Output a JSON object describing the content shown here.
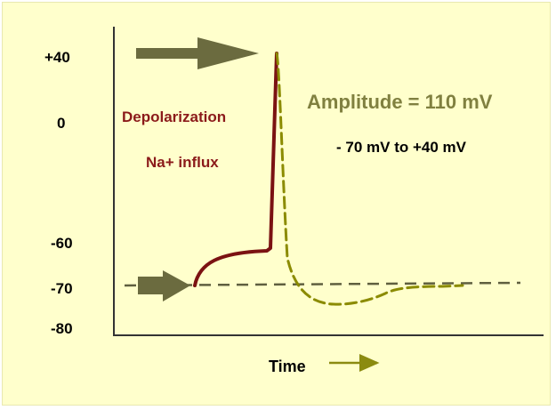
{
  "y_axis": {
    "ticks": [
      {
        "label": "+40",
        "value": 40
      },
      {
        "label": "0",
        "value": 0
      },
      {
        "label": "-60",
        "value": -60
      },
      {
        "label": "-70",
        "value": -70
      },
      {
        "label": "-80",
        "value": -80
      }
    ]
  },
  "x_axis": {
    "label": "Time"
  },
  "annotations": {
    "depolarization": "Depolarization",
    "na_influx": "Na+ influx",
    "amplitude": "Amplitude = 110 mV",
    "range": "- 70 mV to +40 mV"
  },
  "colors": {
    "background": "#ffffcc",
    "axis": "#333333",
    "depolarization_curve": "#7b1212",
    "repolarization_curve": "#8b8b00",
    "baseline": "#5f5f3f",
    "arrow": "#6b6b3f",
    "amplitude_text": "#808040",
    "time_arrow": "#8b8b10"
  }
}
